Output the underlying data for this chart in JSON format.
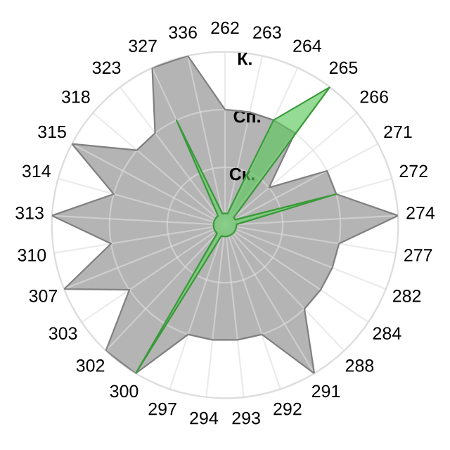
{
  "chart_data": {
    "type": "radar",
    "categories": [
      "262",
      "263",
      "264",
      "265",
      "266",
      "271",
      "272",
      "274",
      "277",
      "282",
      "284",
      "288",
      "291",
      "292",
      "293",
      "294",
      "297",
      "300",
      "302",
      "303",
      "307",
      "310",
      "313",
      "314",
      "315",
      "318",
      "323",
      "327",
      "336"
    ],
    "series": [
      {
        "color": "#b4b4b4",
        "values": [
          2,
          2,
          2,
          2,
          1,
          2,
          2,
          3,
          2,
          2,
          2,
          2,
          3,
          2,
          2,
          2,
          2,
          3,
          3,
          2,
          3,
          2,
          3,
          2,
          3,
          2,
          2,
          3,
          3
        ]
      },
      {
        "color": "#5cc85c",
        "values": [
          0.2,
          0.2,
          2,
          3,
          0.2,
          0.2,
          2,
          0.2,
          0.2,
          0.2,
          0.2,
          0.2,
          0.2,
          0.2,
          0.2,
          0.2,
          0.2,
          3,
          0.2,
          0.2,
          0.2,
          0.2,
          0.2,
          0.2,
          0.2,
          0.2,
          0.2,
          2,
          0.2
        ]
      }
    ],
    "ylim": [
      0,
      3
    ],
    "yticks": [
      {
        "value": 1,
        "label": "Ск."
      },
      {
        "value": 2,
        "label": "Сп."
      },
      {
        "value": 3,
        "label": "К."
      }
    ],
    "grid": true
  }
}
